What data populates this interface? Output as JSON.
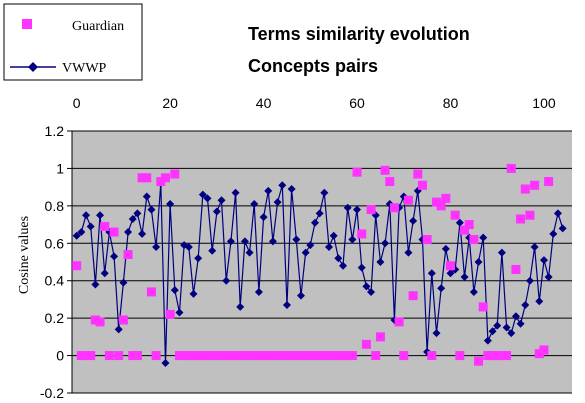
{
  "chart_data": {
    "type": "scatter",
    "title": "Terms similarity evolution",
    "subtitle": "Concepts pairs",
    "xlabel": "",
    "ylabel": "Cosine values",
    "x_ticks": [
      0,
      20,
      40,
      60,
      80,
      100
    ],
    "y_ticks": [
      1.2,
      1,
      0.8,
      0.6,
      0.4,
      0.2,
      0,
      -0.2
    ],
    "x_axis_position": "top",
    "xlim": [
      -1,
      106
    ],
    "ylim": [
      -0.2,
      1.2
    ],
    "grid": true,
    "plot_background": "#C0C0C0",
    "legend_position": "top-left",
    "series": [
      {
        "name": "Guardian",
        "marker": "square",
        "color": "#FF33FF",
        "line": false,
        "points": [
          [
            0,
            0.48
          ],
          [
            1,
            0
          ],
          [
            2,
            0
          ],
          [
            3,
            0
          ],
          [
            4,
            0.19
          ],
          [
            5,
            0.18
          ],
          [
            6,
            0.69
          ],
          [
            7,
            0
          ],
          [
            8,
            0.66
          ],
          [
            9,
            0
          ],
          [
            10,
            0.19
          ],
          [
            11,
            0.54
          ],
          [
            12,
            0
          ],
          [
            13,
            0
          ],
          [
            14,
            0.95
          ],
          [
            15,
            0.95
          ],
          [
            16,
            0.34
          ],
          [
            17,
            0
          ],
          [
            18,
            0.93
          ],
          [
            19,
            0.95
          ],
          [
            20,
            0.22
          ],
          [
            21,
            0.97
          ],
          [
            22,
            0
          ],
          [
            23,
            0
          ],
          [
            24,
            0
          ],
          [
            25,
            0
          ],
          [
            26,
            0
          ],
          [
            27,
            0
          ],
          [
            28,
            0
          ],
          [
            29,
            0
          ],
          [
            30,
            0
          ],
          [
            31,
            0
          ],
          [
            32,
            0
          ],
          [
            33,
            0
          ],
          [
            34,
            0
          ],
          [
            35,
            0
          ],
          [
            36,
            0
          ],
          [
            37,
            0
          ],
          [
            38,
            0
          ],
          [
            39,
            0
          ],
          [
            40,
            0
          ],
          [
            41,
            0
          ],
          [
            42,
            0
          ],
          [
            43,
            0
          ],
          [
            44,
            0
          ],
          [
            45,
            0
          ],
          [
            46,
            0
          ],
          [
            47,
            0
          ],
          [
            48,
            0
          ],
          [
            49,
            0
          ],
          [
            50,
            0
          ],
          [
            51,
            0
          ],
          [
            52,
            0
          ],
          [
            53,
            0
          ],
          [
            54,
            0
          ],
          [
            55,
            0
          ],
          [
            56,
            0
          ],
          [
            57,
            0
          ],
          [
            58,
            0
          ],
          [
            59,
            0
          ],
          [
            60,
            0.98
          ],
          [
            61,
            0.65
          ],
          [
            62,
            0.06
          ],
          [
            63,
            0.78
          ],
          [
            64,
            0
          ],
          [
            65,
            0.1
          ],
          [
            66,
            0.99
          ],
          [
            67,
            0.93
          ],
          [
            68,
            0.79
          ],
          [
            69,
            0.18
          ],
          [
            70,
            0
          ],
          [
            71,
            0.83
          ],
          [
            72,
            0.32
          ],
          [
            73,
            0.97
          ],
          [
            74,
            0.91
          ],
          [
            75,
            0.62
          ],
          [
            76,
            0
          ],
          [
            77,
            0.82
          ],
          [
            78,
            0.8
          ],
          [
            79,
            0.84
          ],
          [
            80,
            0.48
          ],
          [
            81,
            0.75
          ],
          [
            82,
            0
          ],
          [
            83,
            0.67
          ],
          [
            84,
            0.7
          ],
          [
            85,
            0.62
          ],
          [
            86,
            -0.03
          ],
          [
            87,
            0.26
          ],
          [
            88,
            0
          ],
          [
            89,
            0
          ],
          [
            90,
            0
          ],
          [
            91,
            0
          ],
          [
            92,
            0
          ],
          [
            93,
            1.0
          ],
          [
            94,
            0.46
          ],
          [
            95,
            0.73
          ],
          [
            96,
            0.89
          ],
          [
            97,
            0.75
          ],
          [
            98,
            0.91
          ],
          [
            99,
            0.01
          ],
          [
            100,
            0.03
          ],
          [
            101,
            0.93
          ]
        ]
      },
      {
        "name": "VWWP",
        "marker": "diamond",
        "color": "#000080",
        "line": true,
        "points": [
          [
            0,
            0.64
          ],
          [
            1,
            0.66
          ],
          [
            2,
            0.75
          ],
          [
            3,
            0.69
          ],
          [
            4,
            0.38
          ],
          [
            5,
            0.75
          ],
          [
            6,
            0.44
          ],
          [
            7,
            0.66
          ],
          [
            8,
            0.53
          ],
          [
            9,
            0.14
          ],
          [
            10,
            0.39
          ],
          [
            11,
            0.66
          ],
          [
            12,
            0.73
          ],
          [
            13,
            0.76
          ],
          [
            14,
            0.65
          ],
          [
            15,
            0.85
          ],
          [
            16,
            0.78
          ],
          [
            17,
            0.58
          ],
          [
            18,
            0.92
          ],
          [
            19,
            -0.04
          ],
          [
            20,
            0.81
          ],
          [
            21,
            0.35
          ],
          [
            22,
            0.23
          ],
          [
            23,
            0.59
          ],
          [
            24,
            0.58
          ],
          [
            25,
            0.33
          ],
          [
            26,
            0.52
          ],
          [
            27,
            0.86
          ],
          [
            28,
            0.84
          ],
          [
            29,
            0.56
          ],
          [
            30,
            0.77
          ],
          [
            31,
            0.83
          ],
          [
            32,
            0.4
          ],
          [
            33,
            0.61
          ],
          [
            34,
            0.87
          ],
          [
            35,
            0.26
          ],
          [
            36,
            0.61
          ],
          [
            37,
            0.55
          ],
          [
            38,
            0.81
          ],
          [
            39,
            0.34
          ],
          [
            40,
            0.74
          ],
          [
            41,
            0.88
          ],
          [
            42,
            0.61
          ],
          [
            43,
            0.82
          ],
          [
            44,
            0.91
          ],
          [
            45,
            0.27
          ],
          [
            46,
            0.89
          ],
          [
            47,
            0.62
          ],
          [
            48,
            0.32
          ],
          [
            49,
            0.55
          ],
          [
            50,
            0.59
          ],
          [
            51,
            0.71
          ],
          [
            52,
            0.76
          ],
          [
            53,
            0.87
          ],
          [
            54,
            0.58
          ],
          [
            55,
            0.64
          ],
          [
            56,
            0.52
          ],
          [
            57,
            0.48
          ],
          [
            58,
            0.79
          ],
          [
            59,
            0.62
          ],
          [
            60,
            0.78
          ],
          [
            61,
            0.47
          ],
          [
            62,
            0.37
          ],
          [
            63,
            0.34
          ],
          [
            64,
            0.75
          ],
          [
            65,
            0.5
          ],
          [
            66,
            0.6
          ],
          [
            67,
            0.81
          ],
          [
            68,
            0.19
          ],
          [
            69,
            0.79
          ],
          [
            70,
            0.85
          ],
          [
            71,
            0.55
          ],
          [
            72,
            0.72
          ],
          [
            73,
            0.88
          ],
          [
            74,
            0.62
          ],
          [
            75,
            0.02
          ],
          [
            76,
            0.44
          ],
          [
            77,
            0.12
          ],
          [
            78,
            0.36
          ],
          [
            79,
            0.57
          ],
          [
            80,
            0.44
          ],
          [
            81,
            0.46
          ],
          [
            82,
            0.71
          ],
          [
            83,
            0.42
          ],
          [
            84,
            0.63
          ],
          [
            85,
            0.34
          ],
          [
            86,
            0.5
          ],
          [
            87,
            0.63
          ],
          [
            88,
            0.08
          ],
          [
            89,
            0.13
          ],
          [
            90,
            0.16
          ],
          [
            91,
            0.55
          ],
          [
            92,
            0.15
          ],
          [
            93,
            0.12
          ],
          [
            94,
            0.21
          ],
          [
            95,
            0.17
          ],
          [
            96,
            0.27
          ],
          [
            97,
            0.4
          ],
          [
            98,
            0.58
          ],
          [
            99,
            0.29
          ],
          [
            100,
            0.51
          ],
          [
            101,
            0.42
          ],
          [
            102,
            0.65
          ],
          [
            103,
            0.76
          ],
          [
            104,
            0.68
          ]
        ]
      }
    ]
  }
}
